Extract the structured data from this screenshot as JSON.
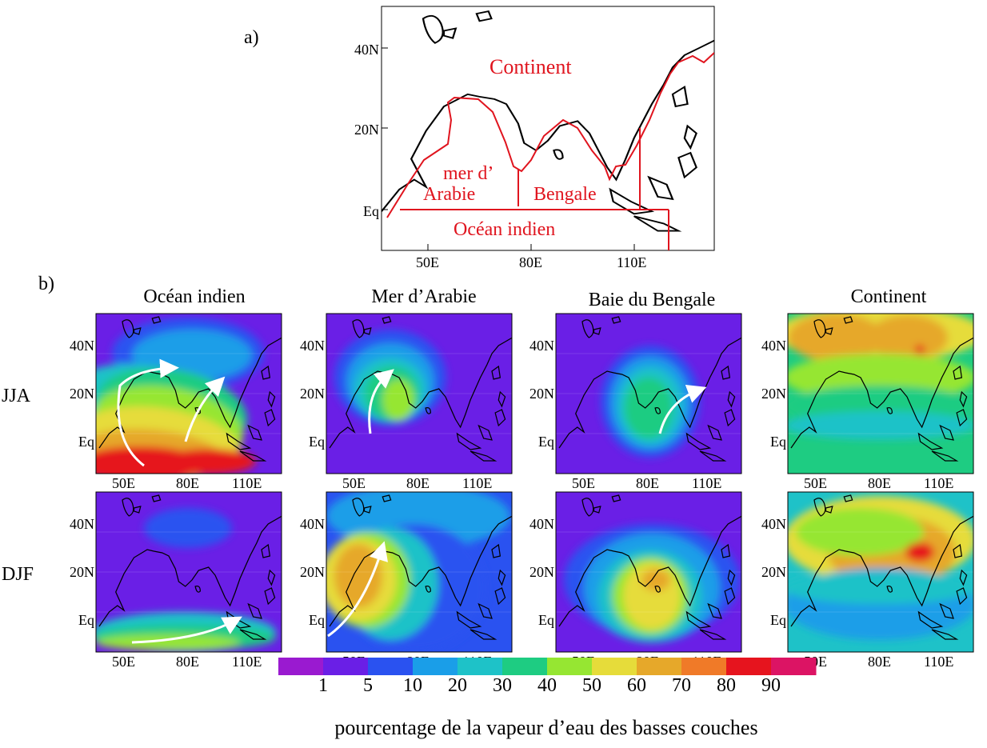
{
  "panel_a": {
    "label": "a)",
    "lat_ticks": [
      "40N",
      "20N",
      "Eq"
    ],
    "lon_ticks": [
      "50E",
      "80E",
      "110E"
    ],
    "regions": {
      "continent": "Continent",
      "arabian_line1": "mer d’",
      "arabian_line2": "Arabie",
      "bengal": "Bengale",
      "indian_ocean": "Océan indien"
    },
    "region_line_color": "#e0141e"
  },
  "panel_b": {
    "label": "b)",
    "columns": [
      "Océan indien",
      "Mer d’Arabie",
      "Baie du Bengale",
      "Continent"
    ],
    "rows": [
      "JJA",
      "DJF"
    ],
    "lat_ticks": [
      "40N",
      "20N",
      "Eq"
    ],
    "lon_ticks": [
      "50E",
      "80E",
      "110E"
    ]
  },
  "colorbar": {
    "tick_labels": [
      "1",
      "5",
      "10",
      "20",
      "30",
      "40",
      "50",
      "60",
      "70",
      "80",
      "90"
    ],
    "colors": [
      "#9a1ad0",
      "#6a1fe6",
      "#2a52f0",
      "#1a9ee8",
      "#1ec2c8",
      "#1ecc82",
      "#96e632",
      "#e6dc3a",
      "#e6a82a",
      "#f07a28",
      "#e6141e",
      "#dc1464"
    ],
    "title": "pourcentage de la vapeur d’eau des basses couches"
  },
  "flow_arrow_color": "#ffffff",
  "coastline_color": "#000000"
}
